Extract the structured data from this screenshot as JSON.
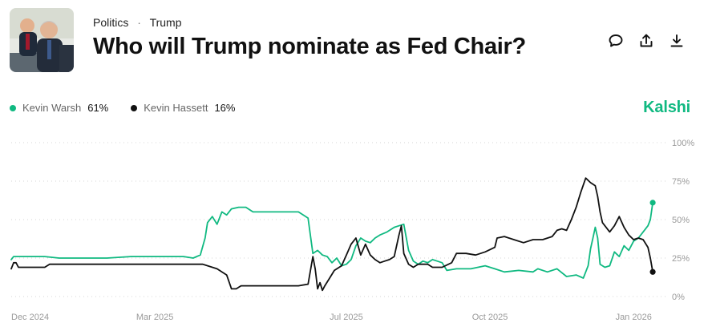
{
  "header": {
    "breadcrumb_category": "Politics",
    "breadcrumb_separator": "·",
    "breadcrumb_topic": "Trump",
    "title": "Who will Trump nominate as Fed Chair?"
  },
  "actions": {
    "comment_icon": "comment-icon",
    "share_icon": "share-icon",
    "download_icon": "download-icon"
  },
  "brand": {
    "name": "Kalshi",
    "color": "#10b981"
  },
  "chart_data": {
    "type": "line",
    "title": "Who will Trump nominate as Fed Chair?",
    "xlabel": "",
    "ylabel": "",
    "ylim": [
      0,
      100
    ],
    "yticks": [
      0,
      25,
      50,
      75,
      100
    ],
    "ytick_labels": [
      "0%",
      "25%",
      "50%",
      "75%",
      "100%"
    ],
    "xticks": [
      {
        "label": "Dec 2024",
        "t": 0
      },
      {
        "label": "Mar 2025",
        "t": 3
      },
      {
        "label": "Jul 2025",
        "t": 7
      },
      {
        "label": "Oct 2025",
        "t": 10
      },
      {
        "label": "Jan 2026",
        "t": 13
      }
    ],
    "x_range": [
      0,
      13.7
    ],
    "grid": "dotted-horizontal",
    "legend_position": "top-left",
    "series": [
      {
        "name": "Kevin Warsh",
        "current": "61%",
        "color": "#10b981",
        "points": [
          [
            0.0,
            24
          ],
          [
            0.05,
            26
          ],
          [
            0.7,
            26
          ],
          [
            1.0,
            25
          ],
          [
            2.0,
            25
          ],
          [
            2.5,
            26
          ],
          [
            3.6,
            26
          ],
          [
            3.8,
            25
          ],
          [
            3.95,
            27
          ],
          [
            4.05,
            38
          ],
          [
            4.1,
            48
          ],
          [
            4.2,
            52
          ],
          [
            4.3,
            47
          ],
          [
            4.4,
            55
          ],
          [
            4.5,
            53
          ],
          [
            4.6,
            57
          ],
          [
            4.75,
            58
          ],
          [
            4.9,
            58
          ],
          [
            5.05,
            55
          ],
          [
            5.5,
            55
          ],
          [
            6.0,
            55
          ],
          [
            6.2,
            51
          ],
          [
            6.3,
            28
          ],
          [
            6.4,
            30
          ],
          [
            6.5,
            27
          ],
          [
            6.6,
            26
          ],
          [
            6.7,
            22
          ],
          [
            6.8,
            25
          ],
          [
            6.9,
            20
          ],
          [
            7.0,
            21
          ],
          [
            7.1,
            24
          ],
          [
            7.2,
            33
          ],
          [
            7.3,
            38
          ],
          [
            7.4,
            36
          ],
          [
            7.5,
            35
          ],
          [
            7.6,
            38
          ],
          [
            7.7,
            40
          ],
          [
            7.85,
            42
          ],
          [
            8.0,
            45
          ],
          [
            8.1,
            46
          ],
          [
            8.2,
            47
          ],
          [
            8.3,
            30
          ],
          [
            8.4,
            23
          ],
          [
            8.5,
            21
          ],
          [
            8.6,
            23
          ],
          [
            8.7,
            22
          ],
          [
            8.8,
            24
          ],
          [
            8.9,
            23
          ],
          [
            9.0,
            22
          ],
          [
            9.1,
            17
          ],
          [
            9.3,
            18
          ],
          [
            9.6,
            18
          ],
          [
            9.9,
            20
          ],
          [
            10.1,
            18
          ],
          [
            10.3,
            16
          ],
          [
            10.6,
            17
          ],
          [
            10.9,
            16
          ],
          [
            11.0,
            18
          ],
          [
            11.2,
            16
          ],
          [
            11.4,
            18
          ],
          [
            11.6,
            13
          ],
          [
            11.8,
            14
          ],
          [
            11.95,
            12
          ],
          [
            12.0,
            16
          ],
          [
            12.05,
            20
          ],
          [
            12.1,
            31
          ],
          [
            12.15,
            38
          ],
          [
            12.2,
            45
          ],
          [
            12.25,
            38
          ],
          [
            12.3,
            21
          ],
          [
            12.4,
            19
          ],
          [
            12.5,
            20
          ],
          [
            12.6,
            29
          ],
          [
            12.7,
            26
          ],
          [
            12.8,
            33
          ],
          [
            12.9,
            30
          ],
          [
            13.0,
            36
          ],
          [
            13.1,
            38
          ],
          [
            13.2,
            42
          ],
          [
            13.3,
            46
          ],
          [
            13.35,
            50
          ],
          [
            13.4,
            61
          ]
        ]
      },
      {
        "name": "Kevin Hassett",
        "current": "16%",
        "color": "#111111",
        "points": [
          [
            0.0,
            18
          ],
          [
            0.05,
            22
          ],
          [
            0.1,
            22
          ],
          [
            0.15,
            19
          ],
          [
            0.5,
            19
          ],
          [
            0.7,
            19
          ],
          [
            0.8,
            21
          ],
          [
            1.2,
            21
          ],
          [
            2.5,
            21
          ],
          [
            3.5,
            21
          ],
          [
            4.0,
            21
          ],
          [
            4.3,
            18
          ],
          [
            4.5,
            14
          ],
          [
            4.6,
            5
          ],
          [
            4.7,
            5
          ],
          [
            4.8,
            7
          ],
          [
            5.3,
            7
          ],
          [
            6.0,
            7
          ],
          [
            6.2,
            8
          ],
          [
            6.3,
            26
          ],
          [
            6.35,
            18
          ],
          [
            6.4,
            5
          ],
          [
            6.45,
            9
          ],
          [
            6.5,
            4
          ],
          [
            6.55,
            7
          ],
          [
            6.65,
            12
          ],
          [
            6.75,
            17
          ],
          [
            6.9,
            20
          ],
          [
            7.0,
            27
          ],
          [
            7.1,
            34
          ],
          [
            7.2,
            38
          ],
          [
            7.3,
            27
          ],
          [
            7.4,
            34
          ],
          [
            7.5,
            27
          ],
          [
            7.6,
            24
          ],
          [
            7.7,
            22
          ],
          [
            7.8,
            23
          ],
          [
            7.9,
            24
          ],
          [
            8.0,
            26
          ],
          [
            8.1,
            40
          ],
          [
            8.15,
            46
          ],
          [
            8.2,
            28
          ],
          [
            8.3,
            21
          ],
          [
            8.4,
            19
          ],
          [
            8.5,
            21
          ],
          [
            8.7,
            21
          ],
          [
            8.8,
            19
          ],
          [
            9.0,
            19
          ],
          [
            9.2,
            22
          ],
          [
            9.3,
            28
          ],
          [
            9.5,
            28
          ],
          [
            9.7,
            27
          ],
          [
            9.9,
            29
          ],
          [
            10.1,
            32
          ],
          [
            10.15,
            38
          ],
          [
            10.3,
            39
          ],
          [
            10.5,
            37
          ],
          [
            10.7,
            35
          ],
          [
            10.9,
            37
          ],
          [
            11.1,
            37
          ],
          [
            11.3,
            39
          ],
          [
            11.4,
            43
          ],
          [
            11.5,
            44
          ],
          [
            11.6,
            43
          ],
          [
            11.7,
            50
          ],
          [
            11.8,
            58
          ],
          [
            11.9,
            68
          ],
          [
            12.0,
            77
          ],
          [
            12.1,
            74
          ],
          [
            12.2,
            72
          ],
          [
            12.25,
            65
          ],
          [
            12.3,
            55
          ],
          [
            12.35,
            48
          ],
          [
            12.5,
            42
          ],
          [
            12.6,
            46
          ],
          [
            12.7,
            52
          ],
          [
            12.8,
            45
          ],
          [
            12.9,
            40
          ],
          [
            13.0,
            37
          ],
          [
            13.1,
            38
          ],
          [
            13.2,
            37
          ],
          [
            13.3,
            32
          ],
          [
            13.35,
            25
          ],
          [
            13.4,
            16
          ]
        ]
      }
    ]
  }
}
